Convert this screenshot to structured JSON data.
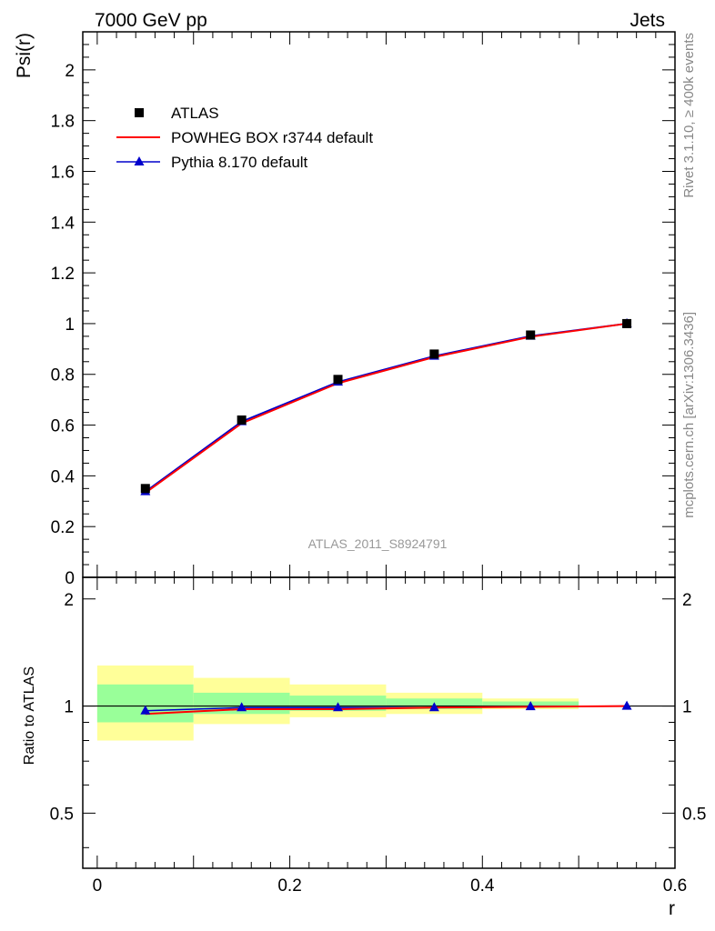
{
  "header": {
    "left": "7000 GeV pp",
    "right": "Jets"
  },
  "side_labels": {
    "rivet": "Rivet 3.1.10, ≥ 400k events",
    "mcplots": "mcplots.cern.ch [arXiv:1306.3436]"
  },
  "analysis_label": "ATLAS_2011_S8924791",
  "colors": {
    "data": "#000000",
    "powheg": "#ff0000",
    "pythia": "#0000cc",
    "band_inner": "#99ff99",
    "band_outer": "#ffff99",
    "analysis_label": "#999999",
    "side_text": "#888888"
  },
  "chart_data": [
    {
      "type": "line",
      "panel": "main",
      "ylabel": "Psi(r)",
      "xlim": [
        -0.015,
        0.6
      ],
      "ylim": [
        0,
        2.15
      ],
      "y_ticks": [
        0,
        0.2,
        0.4,
        0.6,
        0.8,
        1,
        1.2,
        1.4,
        1.6,
        1.8,
        2
      ],
      "y_tick_labels": [
        "0",
        "0.2",
        "0.4",
        "0.6",
        "0.8",
        "1",
        "1.2",
        "1.4",
        "1.6",
        "1.8",
        "2"
      ],
      "legend_position": "top-left",
      "x": [
        0.05,
        0.15,
        0.25,
        0.35,
        0.45,
        0.55
      ],
      "series": [
        {
          "name": "ATLAS",
          "marker": "square",
          "values": [
            0.35,
            0.62,
            0.78,
            0.88,
            0.955,
            1.0
          ]
        },
        {
          "name": "POWHEG BOX r3744 default",
          "marker": "none",
          "values": [
            0.333,
            0.607,
            0.765,
            0.868,
            0.948,
            1.0
          ]
        },
        {
          "name": "Pythia 8.170 default",
          "marker": "triangle",
          "values": [
            0.338,
            0.614,
            0.77,
            0.872,
            0.951,
            1.0
          ]
        }
      ]
    },
    {
      "type": "line",
      "panel": "ratio",
      "ylabel": "Ratio to ATLAS",
      "xlabel": "r",
      "xlim": [
        -0.015,
        0.6
      ],
      "ylim": [
        0.35,
        2.3
      ],
      "y_ticks": [
        0.5,
        1,
        2
      ],
      "y_tick_labels": [
        "0.5",
        "1",
        "2"
      ],
      "x_ticks": [
        0,
        0.2,
        0.4,
        0.6
      ],
      "x_tick_labels": [
        "0",
        "0.2",
        "0.4",
        "0.6"
      ],
      "x_bin_edges": [
        0,
        0.1,
        0.2,
        0.3,
        0.4,
        0.5,
        0.6
      ],
      "bands": {
        "inner_low": [
          0.9,
          0.95,
          0.97,
          0.98,
          0.99,
          1.0
        ],
        "inner_high": [
          1.15,
          1.09,
          1.07,
          1.05,
          1.03,
          1.0
        ],
        "outer_low": [
          0.8,
          0.89,
          0.93,
          0.95,
          0.98,
          1.0
        ],
        "outer_high": [
          1.3,
          1.2,
          1.15,
          1.09,
          1.05,
          1.0
        ]
      },
      "x": [
        0.05,
        0.15,
        0.25,
        0.35,
        0.45,
        0.55
      ],
      "series": [
        {
          "name": "POWHEG BOX r3744 default",
          "marker": "none",
          "values": [
            0.95,
            0.98,
            0.98,
            0.99,
            0.995,
            1.0
          ]
        },
        {
          "name": "Pythia 8.170 default",
          "marker": "triangle",
          "values": [
            0.97,
            0.99,
            0.99,
            0.99,
            0.997,
            1.0
          ]
        }
      ]
    }
  ]
}
